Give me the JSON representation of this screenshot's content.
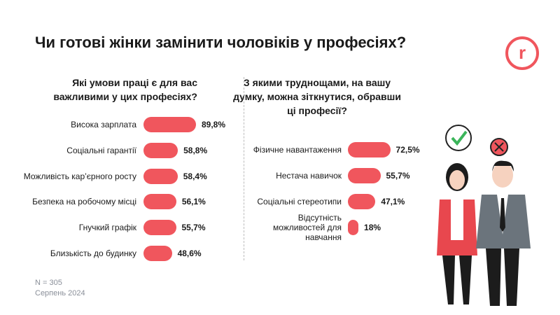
{
  "title": "Чи готові жінки замінити чоловіків у професіях?",
  "logo": "r",
  "chart_data": [
    {
      "type": "bar",
      "orientation": "horizontal",
      "title": "Які умови праці є для вас важливими у цих професіях?",
      "categories": [
        "Висока зарплата",
        "Соціальні гарантії",
        "Можливість кар’єрного росту",
        "Безпека на робочому місці",
        "Гнучкий графік",
        "Близькість до будинку"
      ],
      "values": [
        89.8,
        58.8,
        58.4,
        56.1,
        55.7,
        48.6
      ],
      "value_labels": [
        "89,8%",
        "58,8%",
        "58,4%",
        "56,1%",
        "55,7%",
        "48,6%"
      ],
      "color": "#f0565d"
    },
    {
      "type": "bar",
      "orientation": "horizontal",
      "title": "З якими труднощами, на вашу думку, можна зіткнутися, обравши ці професії?",
      "categories": [
        "Фізичне навантаження",
        "Нестача навичок",
        "Соціальні стереотипи",
        "Відсутність можливостей для навчання"
      ],
      "values": [
        72.5,
        55.7,
        47.1,
        18
      ],
      "value_labels": [
        "72,5%",
        "55,7%",
        "47,1%",
        "18%"
      ],
      "color": "#f0565d"
    }
  ],
  "notes": [
    "N = 305",
    "Серпень 2024"
  ]
}
